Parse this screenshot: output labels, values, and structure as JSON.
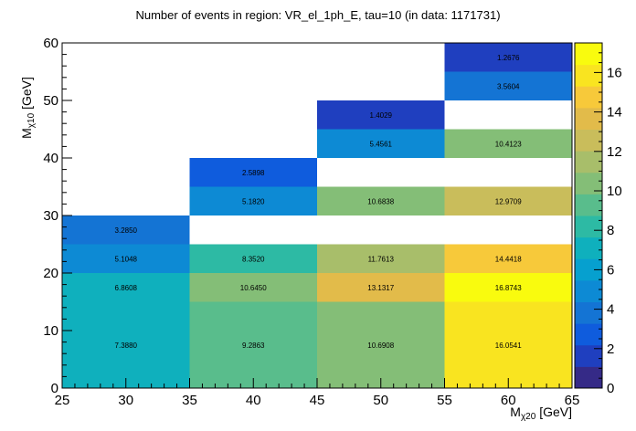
{
  "chart_data": {
    "type": "heatmap",
    "title": "Number of events in region: VR_el_1ph_E, tau=10 (in data: 1171731)",
    "xlabel": {
      "main": "M",
      "sub": "χ20",
      "unit": " [GeV]"
    },
    "ylabel": {
      "main": "M",
      "sub": "χ10",
      "unit": " [GeV]"
    },
    "xlim": [
      25,
      65
    ],
    "ylim": [
      0,
      60
    ],
    "zlim": [
      0,
      17.5
    ],
    "x_ticks": [
      25,
      30,
      35,
      40,
      45,
      50,
      55,
      60,
      65
    ],
    "y_ticks": [
      0,
      10,
      20,
      30,
      40,
      50,
      60
    ],
    "z_ticks": [
      0,
      2,
      4,
      6,
      8,
      10,
      12,
      14,
      16
    ],
    "cells": [
      {
        "x": [
          25,
          35
        ],
        "y": [
          0,
          15
        ],
        "value": 7.388,
        "label": "7.3880"
      },
      {
        "x": [
          25,
          35
        ],
        "y": [
          15,
          25
        ],
        "value": 6.8608,
        "label": "6.8608"
      },
      {
        "x": [
          25,
          35
        ],
        "y": [
          20,
          25
        ],
        "value": 5.1048,
        "label": "5.1048"
      },
      {
        "x": [
          25,
          35
        ],
        "y": [
          25,
          30
        ],
        "value": 3.285,
        "label": "3.2850"
      },
      {
        "x": [
          35,
          45
        ],
        "y": [
          0,
          15
        ],
        "value": 9.2863,
        "label": "9.2863"
      },
      {
        "x": [
          35,
          45
        ],
        "y": [
          15,
          20
        ],
        "value": 10.645,
        "label": "10.6450"
      },
      {
        "x": [
          35,
          45
        ],
        "y": [
          20,
          25
        ],
        "value": 8.352,
        "label": "8.3520"
      },
      {
        "x": [
          35,
          45
        ],
        "y": [
          30,
          35
        ],
        "value": 5.182,
        "label": "5.1820"
      },
      {
        "x": [
          35,
          45
        ],
        "y": [
          35,
          40
        ],
        "value": 2.5898,
        "label": "2.5898"
      },
      {
        "x": [
          45,
          55
        ],
        "y": [
          0,
          15
        ],
        "value": 10.6908,
        "label": "10.6908"
      },
      {
        "x": [
          45,
          55
        ],
        "y": [
          15,
          20
        ],
        "value": 13.1317,
        "label": "13.1317"
      },
      {
        "x": [
          45,
          55
        ],
        "y": [
          20,
          25
        ],
        "value": 11.7613,
        "label": "11.7613"
      },
      {
        "x": [
          45,
          55
        ],
        "y": [
          30,
          35
        ],
        "value": 10.6838,
        "label": "10.6838"
      },
      {
        "x": [
          45,
          55
        ],
        "y": [
          40,
          45
        ],
        "value": 5.4561,
        "label": "5.4561"
      },
      {
        "x": [
          45,
          55
        ],
        "y": [
          45,
          50
        ],
        "value": 1.4029,
        "label": "1.4029"
      },
      {
        "x": [
          55,
          65
        ],
        "y": [
          0,
          15
        ],
        "value": 16.0541,
        "label": "16.0541"
      },
      {
        "x": [
          55,
          65
        ],
        "y": [
          15,
          20
        ],
        "value": 16.8743,
        "label": "16.8743"
      },
      {
        "x": [
          55,
          65
        ],
        "y": [
          20,
          25
        ],
        "value": 14.4418,
        "label": "14.4418"
      },
      {
        "x": [
          55,
          65
        ],
        "y": [
          30,
          35
        ],
        "value": 12.9709,
        "label": "12.9709"
      },
      {
        "x": [
          55,
          65
        ],
        "y": [
          40,
          45
        ],
        "value": 10.4123,
        "label": "10.4123"
      },
      {
        "x": [
          55,
          65
        ],
        "y": [
          50,
          55
        ],
        "value": 3.5604,
        "label": "3.5604"
      },
      {
        "x": [
          55,
          65
        ],
        "y": [
          55,
          60
        ],
        "value": 1.2676,
        "label": "1.2676"
      }
    ],
    "palette": [
      "#352a87",
      "#1f3fbf",
      "#0f5cdd",
      "#1474d4",
      "#0d8ad4",
      "#06a0cf",
      "#0fb0bd",
      "#2dbaa4",
      "#59bd8c",
      "#84be77",
      "#a8be6a",
      "#c9bd5b",
      "#e2bb4a",
      "#f7c93a",
      "#f9e420",
      "#f9fb0e"
    ]
  }
}
